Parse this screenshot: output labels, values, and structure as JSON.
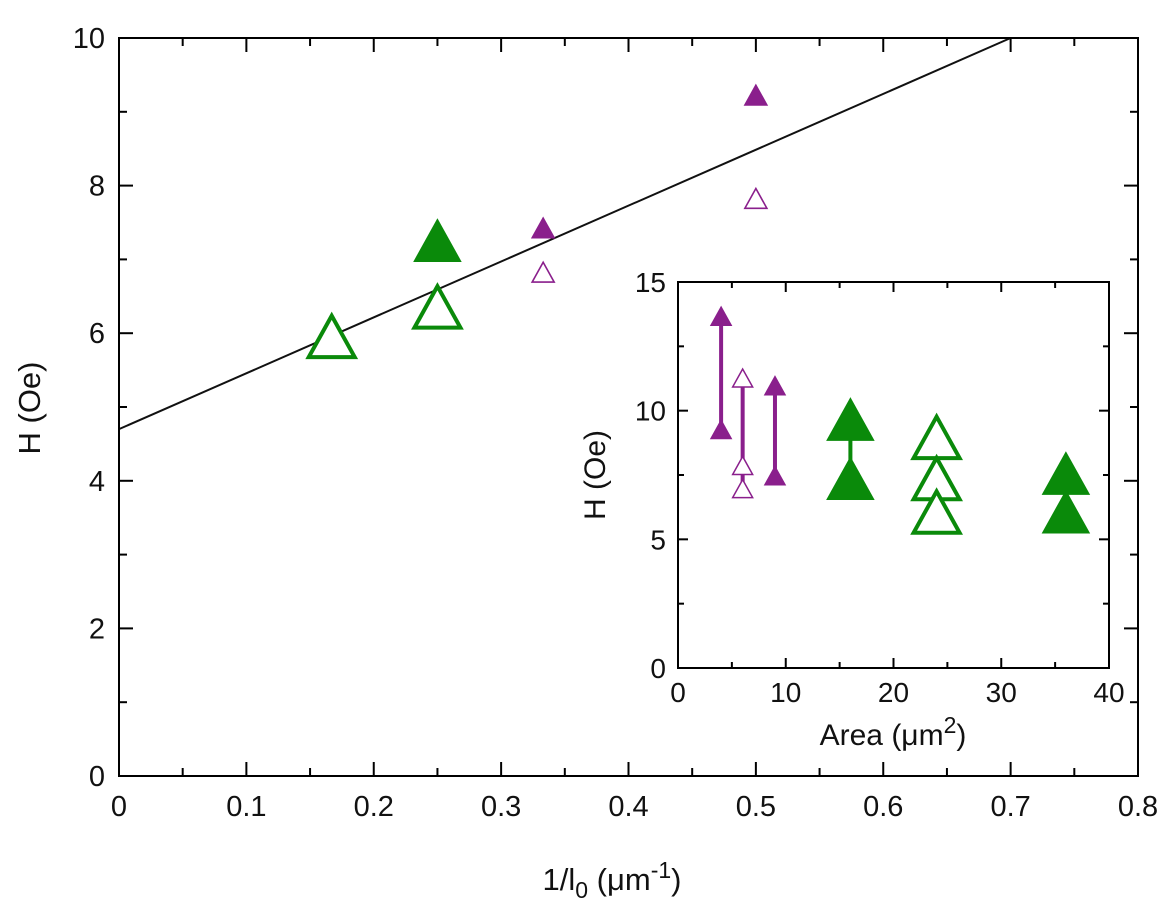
{
  "chart_data": [
    {
      "type": "scatter",
      "xlabel": {
        "main": "1/l",
        "sub": "0",
        "unit": " (μm",
        "sup": "-1",
        "close": ")"
      },
      "ylabel": "H (Oe)",
      "xlim": [
        0,
        0.8
      ],
      "ylim": [
        0,
        10
      ],
      "xticks": [
        "0",
        "0.1",
        "0.2",
        "0.3",
        "0.4",
        "0.5",
        "0.6",
        "0.7",
        "0.8"
      ],
      "yticks": [
        "0",
        "2",
        "4",
        "6",
        "8",
        "10"
      ],
      "grid": false,
      "fit_line": {
        "x": [
          0,
          0.7
        ],
        "y": [
          4.7,
          10.0
        ]
      },
      "series": [
        {
          "marker": "triangle-filled",
          "color": "#8a1f8c",
          "size": "small",
          "points": [
            {
              "x": 0.333,
              "y": 7.4
            },
            {
              "x": 0.5,
              "y": 9.2
            }
          ]
        },
        {
          "marker": "triangle-open",
          "color": "#8a1f8c",
          "size": "small",
          "points": [
            {
              "x": 0.333,
              "y": 6.8
            },
            {
              "x": 0.5,
              "y": 7.8
            }
          ]
        },
        {
          "marker": "triangle-filled",
          "color": "#0a8a0a",
          "size": "large",
          "points": [
            {
              "x": 0.25,
              "y": 7.2
            }
          ]
        },
        {
          "marker": "triangle-open",
          "color": "#0a8a0a",
          "size": "large",
          "points": [
            {
              "x": 0.167,
              "y": 5.9
            },
            {
              "x": 0.25,
              "y": 6.3
            }
          ]
        }
      ]
    },
    {
      "type": "scatter",
      "xlabel": {
        "main": "Area (μm",
        "sup": "2",
        "close": ")"
      },
      "ylabel": "H (Oe)",
      "xlim": [
        0,
        40
      ],
      "ylim": [
        0,
        15
      ],
      "xticks": [
        "0",
        "10",
        "20",
        "30",
        "40"
      ],
      "yticks": [
        "0",
        "5",
        "10",
        "15"
      ],
      "grid": false,
      "ranges": [
        {
          "x": 4,
          "y": [
            9.2,
            13.6
          ],
          "color": "#8a1f8c"
        },
        {
          "x": 6,
          "y": [
            6.9,
            11.2
          ],
          "color": "#8a1f8c"
        },
        {
          "x": 9,
          "y": [
            7.4,
            10.9
          ],
          "color": "#8a1f8c"
        },
        {
          "x": 16,
          "y": [
            7.2,
            9.5
          ],
          "color": "#0a8a0a"
        },
        {
          "x": 24,
          "y": [
            5.9,
            8.8
          ],
          "color": "#0a8a0a"
        },
        {
          "x": 36,
          "y": [
            5.9,
            7.4
          ],
          "color": "#0a8a0a"
        }
      ],
      "series": [
        {
          "marker": "triangle-filled",
          "color": "#8a1f8c",
          "size": "small",
          "points": [
            {
              "x": 4,
              "y": 13.6
            },
            {
              "x": 4,
              "y": 9.2
            },
            {
              "x": 9,
              "y": 10.9
            },
            {
              "x": 9,
              "y": 7.4
            }
          ]
        },
        {
          "marker": "triangle-open",
          "color": "#8a1f8c",
          "size": "small",
          "points": [
            {
              "x": 6,
              "y": 11.2
            },
            {
              "x": 6,
              "y": 7.8
            },
            {
              "x": 6,
              "y": 6.9
            }
          ]
        },
        {
          "marker": "triangle-filled",
          "color": "#0a8a0a",
          "size": "large",
          "points": [
            {
              "x": 16,
              "y": 9.5
            },
            {
              "x": 16,
              "y": 7.2
            },
            {
              "x": 36,
              "y": 7.4
            },
            {
              "x": 36,
              "y": 5.9
            }
          ]
        },
        {
          "marker": "triangle-open",
          "color": "#0a8a0a",
          "size": "large",
          "points": [
            {
              "x": 24,
              "y": 8.8
            },
            {
              "x": 24,
              "y": 7.2
            },
            {
              "x": 24,
              "y": 5.9
            }
          ]
        }
      ]
    }
  ]
}
